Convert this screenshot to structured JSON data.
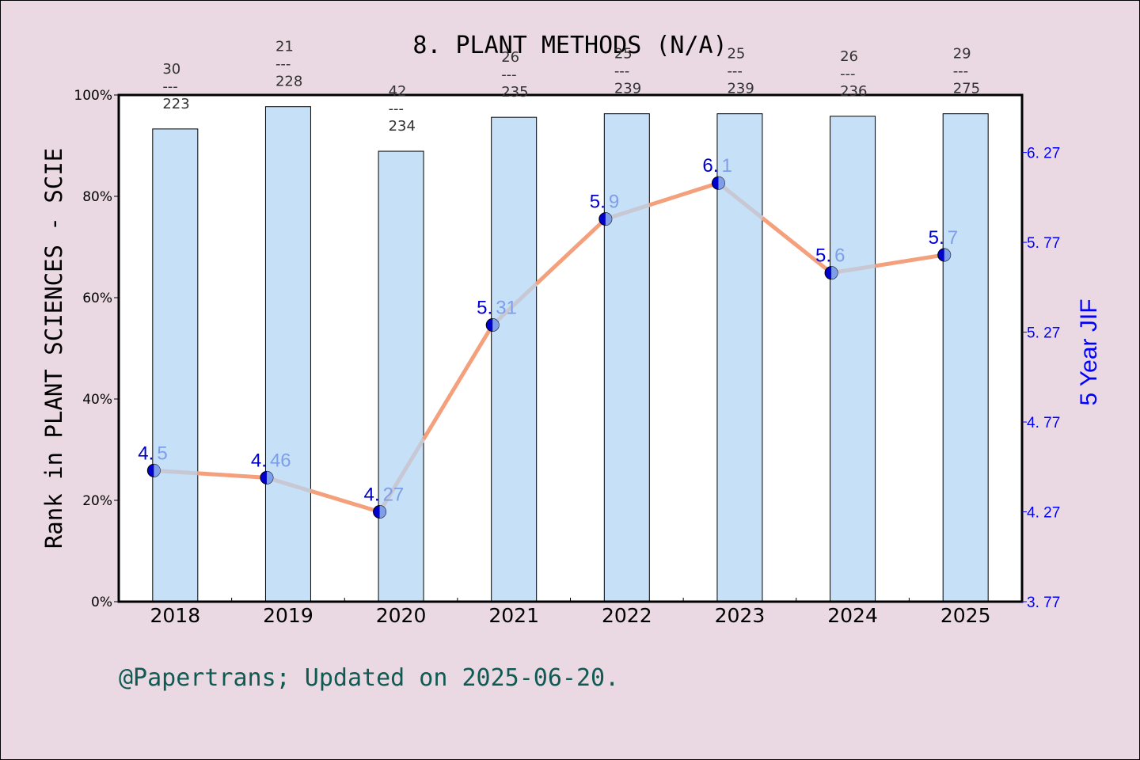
{
  "chart_data": {
    "type": "bar+line",
    "title": "8. PLANT METHODS (N/A)",
    "categories": [
      "2018",
      "2019",
      "2020",
      "2021",
      "2022",
      "2023",
      "2024",
      "2025"
    ],
    "series": [
      {
        "name": "Rank percentile in PLANT SCIENCES - SCIE",
        "type": "bar",
        "axis": "left",
        "values": [
          93.3,
          97.7,
          88.9,
          95.6,
          96.3,
          96.3,
          95.8,
          96.3
        ],
        "color": "#c5e0f7"
      },
      {
        "name": "5 Year JIF",
        "type": "line",
        "axis": "right",
        "values": [
          4.5,
          4.46,
          4.27,
          5.31,
          5.9,
          6.1,
          5.6,
          5.7
        ],
        "labels": [
          "4.5",
          "4.46",
          "4.27",
          "5.31",
          "5.9",
          "6.1",
          "5.6",
          "5.7"
        ],
        "color": "#f4a07c"
      }
    ],
    "rank_labels": [
      {
        "rank": "30",
        "total": "223"
      },
      {
        "rank": "21",
        "total": "228"
      },
      {
        "rank": "42",
        "total": "234"
      },
      {
        "rank": "26",
        "total": "235"
      },
      {
        "rank": "25",
        "total": "239"
      },
      {
        "rank": "25",
        "total": "239"
      },
      {
        "rank": "26",
        "total": "236"
      },
      {
        "rank": "29",
        "total": "275"
      }
    ],
    "ylabel": "Rank in PLANT SCIENCES - SCIE",
    "ylabel_right": "5 Year JIF",
    "ylim": [
      0,
      100
    ],
    "yticks": [
      "0%",
      "20%",
      "40%",
      "60%",
      "80%",
      "100%"
    ],
    "ylim_right": [
      3.77,
      6.59
    ],
    "yticks_right": [
      "3.77",
      "4.27",
      "4.77",
      "5.27",
      "5.77",
      "6.27"
    ],
    "grid": false,
    "footer": "@Papertrans; Updated on 2025-06-20."
  }
}
